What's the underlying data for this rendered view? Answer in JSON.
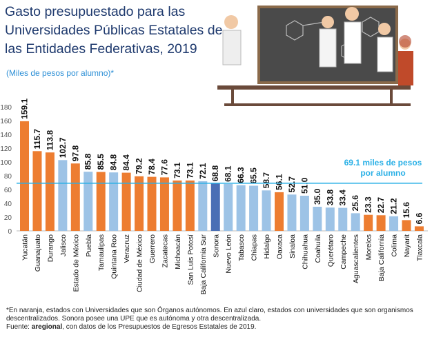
{
  "header": {
    "title": "Gasto presupuestado para las Universidades Públicas Estatales de las Entidades Federativas, 2019",
    "subtitle": "(Miles de pesos por alumno)*"
  },
  "colors": {
    "autonomous": "#ed7d31",
    "decentralized": "#9dc3e6",
    "mixed": "#4a6fb5",
    "reference": "#2ab0e6"
  },
  "chart_data": {
    "type": "bar",
    "ylim": [
      0,
      180
    ],
    "yticks": [
      0,
      20,
      40,
      60,
      80,
      100,
      120,
      140,
      160,
      180
    ],
    "grid": false,
    "categories": [
      "Yucatán",
      "Guanajuato",
      "Durango",
      "Jalisco",
      "Estado de México",
      "Puebla",
      "Tamaulipas",
      "Quintana Roo",
      "Veracruz",
      "Ciudad de México",
      "Guerrero",
      "Zacatecas",
      "Michoacán",
      "San Luis Potosí",
      "Baja California Sur",
      "Sonora",
      "Nuevo León",
      "Tabasco",
      "Chiapas",
      "Hidalgo",
      "Oaxaca",
      "Sinaloa",
      "Chihuahua",
      "Coahuila",
      "Querétaro",
      "Campeche",
      "Aguascalientes",
      "Morelos",
      "Baja California",
      "Colima",
      "Nayarit",
      "Tlaxcala"
    ],
    "values": [
      159.1,
      115.7,
      113.8,
      102.7,
      97.8,
      85.8,
      85.5,
      84.8,
      84.4,
      79.2,
      78.4,
      77.6,
      73.1,
      73.1,
      72.1,
      68.8,
      68.1,
      66.3,
      65.5,
      58.7,
      56.1,
      52.7,
      51.0,
      35.0,
      33.8,
      33.4,
      25.6,
      23.3,
      22.7,
      21.2,
      15.6,
      6.6
    ],
    "labels": [
      "159.1",
      "115.7",
      "113.8",
      "102.7",
      "97.8",
      "85.8",
      "85.5",
      "84.8",
      "84.4",
      "79.2",
      "78.4",
      "77.6",
      "73.1",
      "73.1",
      "72.1",
      "68.8",
      "68.1",
      "66.3",
      "65.5",
      "58.7",
      "56.1",
      "52.7",
      "51.0",
      "35.0",
      "33.8",
      "33.4",
      "25.6",
      "23.3",
      "22.7",
      "21.2",
      "15.6",
      "6.6"
    ],
    "types": [
      "autonomous",
      "autonomous",
      "autonomous",
      "decentralized",
      "autonomous",
      "decentralized",
      "autonomous",
      "decentralized",
      "autonomous",
      "autonomous",
      "autonomous",
      "autonomous",
      "autonomous",
      "autonomous",
      "decentralized",
      "mixed",
      "decentralized",
      "decentralized",
      "decentralized",
      "decentralized",
      "autonomous",
      "decentralized",
      "decentralized",
      "decentralized",
      "decentralized",
      "decentralized",
      "decentralized",
      "autonomous",
      "autonomous",
      "decentralized",
      "autonomous",
      "autonomous"
    ],
    "reference": {
      "value": 69.1,
      "label_line1": "69.1 miles de pesos",
      "label_line2": "por alumno"
    }
  },
  "footer": {
    "note": "*En naranja, estados con Universidades que son Órganos autónomos. En azul claro, estados con universidades que son organismos descentralizados. Sonora posee una UPE que es autónoma y otra descentralizada.",
    "source_prefix": "Fuente: ",
    "source_brand": "aregional",
    "source_suffix": ", con datos de los Presupuestos de Egresos Estatales de 2019."
  }
}
